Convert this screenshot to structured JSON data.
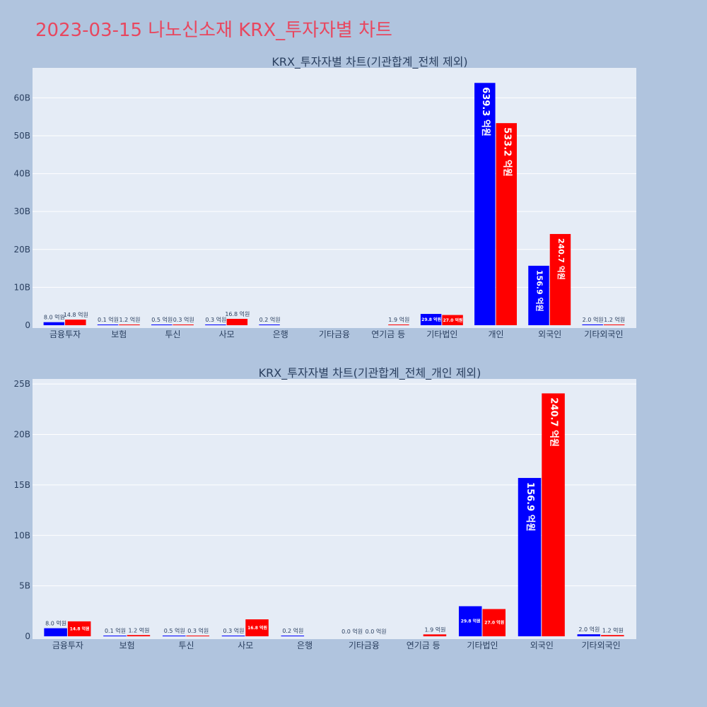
{
  "page": {
    "title": "2023-03-15 나노신소재 KRX_투자자별 차트"
  },
  "colors": {
    "background": "#b0c4de",
    "plot_bg": "#e5ecf6",
    "series_a": "#0000ff",
    "series_b": "#ff0000",
    "title": "#e8475f"
  },
  "chart_data": [
    {
      "type": "bar",
      "title": "KRX_투자자별 차트(기관합계_전체 제외)",
      "categories": [
        "금융투자",
        "보험",
        "투신",
        "사모",
        "은행",
        "기타금융",
        "연기금 등",
        "기타법인",
        "개인",
        "외국인",
        "기타외국인"
      ],
      "series": [
        {
          "values": [
            0.8,
            0.01,
            0.05,
            0.03,
            0.02,
            0.0,
            0.0,
            2.98,
            63.93,
            15.69,
            0.2
          ],
          "labels": [
            "8.0 억원",
            "0.1 억원",
            "0.5 억원",
            "0.3 억원",
            "0.2 억원",
            "",
            "",
            "29.8 억원",
            "639.3 억원",
            "156.9 억원",
            "2.0 억원"
          ]
        },
        {
          "values": [
            1.48,
            0.12,
            0.03,
            1.68,
            0.0,
            0.0,
            0.19,
            2.7,
            53.32,
            24.07,
            0.12
          ],
          "labels": [
            "14.8 억원",
            "1.2 억원",
            "0.3 억원",
            "16.8 억원",
            "",
            "",
            "1.9 억원",
            "27.0 억원",
            "533.2 억원",
            "240.7 억원",
            "1.2 억원"
          ]
        }
      ],
      "yticks": [
        0,
        10,
        20,
        30,
        40,
        50,
        60
      ],
      "ytick_labels": [
        "0",
        "10B",
        "20B",
        "30B",
        "40B",
        "50B",
        "60B"
      ],
      "ylim": [
        0,
        67.9
      ],
      "grid": true,
      "legend": "none"
    },
    {
      "type": "bar",
      "title": "KRX_투자자별 차트(기관합계_전체_개인 제외)",
      "categories": [
        "금융투자",
        "보험",
        "투신",
        "사모",
        "은행",
        "기타금융",
        "연기금 등",
        "기타법인",
        "외국인",
        "기타외국인"
      ],
      "series": [
        {
          "values": [
            0.8,
            0.01,
            0.05,
            0.03,
            0.02,
            0.0,
            0.0,
            2.98,
            15.69,
            0.2
          ],
          "labels": [
            "8.0 억원",
            "0.1 억원",
            "0.5 억원",
            "0.3 억원",
            "0.2 억원",
            "0.0 억원",
            "",
            "29.8 억원",
            "156.9 억원",
            "2.0 억원"
          ]
        },
        {
          "values": [
            1.48,
            0.12,
            0.03,
            1.68,
            0.0,
            0.0,
            0.19,
            2.7,
            24.07,
            0.12
          ],
          "labels": [
            "14.8 억원",
            "1.2 억원",
            "0.3 억원",
            "16.8 억원",
            "",
            "0.0 억원",
            "1.9 억원",
            "27.0 억원",
            "240.7 억원",
            "1.2 억원"
          ]
        }
      ],
      "yticks": [
        0,
        5,
        10,
        15,
        20,
        25
      ],
      "ytick_labels": [
        "0",
        "5B",
        "10B",
        "15B",
        "20B",
        "25B"
      ],
      "ylim": [
        0,
        25.5
      ],
      "grid": true,
      "legend": "none"
    }
  ]
}
